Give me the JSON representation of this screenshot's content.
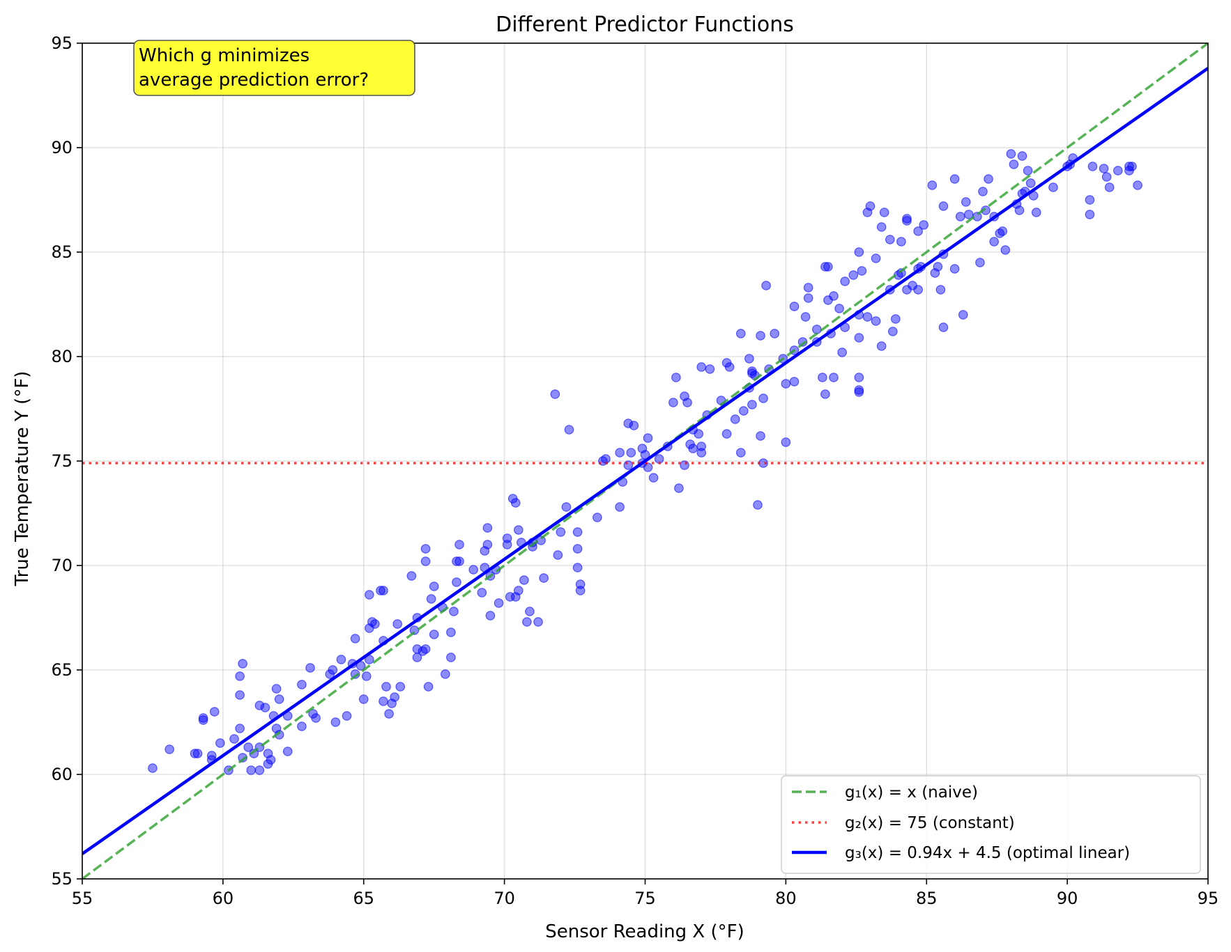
{
  "chart_data": {
    "type": "scatter",
    "title": "Different Predictor Functions",
    "xlabel": "Sensor Reading X (°F)",
    "ylabel": "True Temperature Y (°F)",
    "xlim": [
      55,
      95
    ],
    "ylim": [
      55,
      95
    ],
    "xticks": [
      55,
      60,
      65,
      70,
      75,
      80,
      85,
      90,
      95
    ],
    "yticks": [
      55,
      60,
      65,
      70,
      75,
      80,
      85,
      90,
      95
    ],
    "grid": true,
    "legend_position": "lower-right",
    "annotation": {
      "lines": [
        "Which g minimizes",
        "average prediction error?"
      ],
      "position": "upper-left",
      "background": "#ffff33"
    },
    "series": [
      {
        "kind": "points",
        "color": "#0000ff",
        "points": [
          [
            57.5,
            60.3
          ],
          [
            58.1,
            61.2
          ],
          [
            59.0,
            61.0
          ],
          [
            59.1,
            61.0
          ],
          [
            59.3,
            62.6
          ],
          [
            59.3,
            62.7
          ],
          [
            59.6,
            60.9
          ],
          [
            59.7,
            63.0
          ],
          [
            59.6,
            60.7
          ],
          [
            59.9,
            61.5
          ],
          [
            60.2,
            60.2
          ],
          [
            60.4,
            61.7
          ],
          [
            60.6,
            63.8
          ],
          [
            60.6,
            62.2
          ],
          [
            60.6,
            64.7
          ],
          [
            60.7,
            65.3
          ],
          [
            60.7,
            60.8
          ],
          [
            60.9,
            61.3
          ],
          [
            61.0,
            60.2
          ],
          [
            61.1,
            61.0
          ],
          [
            61.3,
            60.2
          ],
          [
            61.3,
            63.3
          ],
          [
            61.3,
            61.3
          ],
          [
            61.5,
            63.2
          ],
          [
            61.6,
            61.0
          ],
          [
            61.6,
            60.5
          ],
          [
            61.7,
            60.7
          ],
          [
            61.8,
            62.8
          ],
          [
            61.9,
            64.1
          ],
          [
            61.9,
            62.2
          ],
          [
            62.0,
            61.9
          ],
          [
            62.0,
            63.6
          ],
          [
            62.3,
            62.8
          ],
          [
            62.3,
            61.1
          ],
          [
            62.8,
            64.3
          ],
          [
            62.8,
            62.3
          ],
          [
            63.1,
            65.1
          ],
          [
            63.2,
            62.9
          ],
          [
            63.3,
            62.7
          ],
          [
            63.8,
            64.8
          ],
          [
            63.9,
            65.0
          ],
          [
            64.0,
            62.5
          ],
          [
            64.2,
            65.5
          ],
          [
            64.4,
            62.8
          ],
          [
            64.6,
            65.3
          ],
          [
            64.7,
            66.5
          ],
          [
            64.7,
            64.8
          ],
          [
            64.9,
            65.2
          ],
          [
            65.0,
            63.6
          ],
          [
            65.1,
            64.7
          ],
          [
            65.2,
            65.5
          ],
          [
            65.2,
            67.0
          ],
          [
            65.3,
            67.3
          ],
          [
            65.2,
            68.6
          ],
          [
            65.4,
            67.2
          ],
          [
            65.6,
            68.8
          ],
          [
            65.7,
            68.8
          ],
          [
            65.7,
            66.4
          ],
          [
            65.7,
            63.5
          ],
          [
            65.8,
            64.2
          ],
          [
            65.9,
            62.9
          ],
          [
            66.0,
            63.4
          ],
          [
            66.1,
            63.7
          ],
          [
            66.2,
            67.2
          ],
          [
            66.3,
            64.2
          ],
          [
            66.7,
            69.5
          ],
          [
            66.8,
            66.9
          ],
          [
            66.9,
            67.5
          ],
          [
            66.9,
            65.6
          ],
          [
            66.9,
            66.0
          ],
          [
            67.1,
            65.9
          ],
          [
            67.2,
            70.2
          ],
          [
            67.2,
            70.8
          ],
          [
            67.2,
            66.0
          ],
          [
            67.3,
            64.2
          ],
          [
            67.4,
            68.4
          ],
          [
            67.5,
            69.0
          ],
          [
            67.5,
            66.7
          ],
          [
            67.8,
            68.0
          ],
          [
            67.9,
            64.8
          ],
          [
            68.1,
            66.8
          ],
          [
            68.1,
            65.6
          ],
          [
            68.2,
            67.8
          ],
          [
            68.3,
            70.2
          ],
          [
            68.3,
            69.2
          ],
          [
            68.4,
            70.2
          ],
          [
            68.4,
            71.0
          ],
          [
            68.9,
            69.8
          ],
          [
            69.2,
            68.7
          ],
          [
            69.3,
            70.7
          ],
          [
            69.3,
            69.9
          ],
          [
            69.4,
            71.8
          ],
          [
            69.4,
            71.0
          ],
          [
            69.5,
            67.6
          ],
          [
            69.5,
            69.5
          ],
          [
            69.7,
            69.8
          ],
          [
            69.8,
            68.2
          ],
          [
            70.1,
            71.0
          ],
          [
            70.1,
            71.3
          ],
          [
            70.2,
            68.5
          ],
          [
            70.3,
            73.2
          ],
          [
            70.4,
            73.0
          ],
          [
            70.4,
            68.5
          ],
          [
            70.5,
            71.7
          ],
          [
            70.5,
            68.8
          ],
          [
            70.6,
            71.1
          ],
          [
            70.7,
            69.3
          ],
          [
            70.8,
            67.3
          ],
          [
            70.9,
            67.8
          ],
          [
            71.0,
            70.9
          ],
          [
            71.0,
            71.1
          ],
          [
            71.2,
            67.3
          ],
          [
            71.3,
            71.2
          ],
          [
            71.4,
            69.4
          ],
          [
            71.8,
            78.2
          ],
          [
            71.9,
            70.5
          ],
          [
            72.0,
            71.6
          ],
          [
            72.2,
            72.8
          ],
          [
            72.3,
            76.5
          ],
          [
            72.6,
            69.9
          ],
          [
            72.6,
            71.6
          ],
          [
            72.6,
            70.8
          ],
          [
            72.7,
            69.1
          ],
          [
            72.7,
            68.8
          ],
          [
            73.3,
            72.3
          ],
          [
            73.5,
            75.0
          ],
          [
            73.6,
            75.1
          ],
          [
            74.1,
            72.8
          ],
          [
            74.1,
            75.4
          ],
          [
            74.2,
            74.0
          ],
          [
            74.4,
            74.8
          ],
          [
            74.4,
            76.8
          ],
          [
            74.5,
            75.4
          ],
          [
            74.6,
            76.7
          ],
          [
            74.9,
            75.6
          ],
          [
            74.9,
            74.9
          ],
          [
            75.0,
            75.3
          ],
          [
            75.1,
            74.7
          ],
          [
            75.1,
            76.1
          ],
          [
            75.3,
            74.2
          ],
          [
            75.5,
            75.1
          ],
          [
            75.8,
            75.7
          ],
          [
            76.0,
            77.8
          ],
          [
            76.1,
            79.0
          ],
          [
            76.2,
            73.7
          ],
          [
            76.4,
            74.8
          ],
          [
            76.4,
            78.1
          ],
          [
            76.5,
            77.8
          ],
          [
            76.6,
            75.8
          ],
          [
            76.7,
            75.6
          ],
          [
            76.7,
            76.5
          ],
          [
            76.9,
            76.3
          ],
          [
            77.0,
            79.5
          ],
          [
            77.0,
            75.7
          ],
          [
            77.0,
            75.4
          ],
          [
            77.2,
            77.2
          ],
          [
            77.3,
            79.4
          ],
          [
            77.7,
            77.9
          ],
          [
            77.9,
            79.7
          ],
          [
            77.9,
            76.3
          ],
          [
            78.0,
            79.5
          ],
          [
            78.2,
            77.0
          ],
          [
            78.4,
            81.1
          ],
          [
            78.4,
            75.4
          ],
          [
            78.5,
            77.4
          ],
          [
            78.7,
            78.5
          ],
          [
            78.7,
            79.9
          ],
          [
            78.8,
            79.2
          ],
          [
            78.8,
            79.3
          ],
          [
            78.8,
            77.7
          ],
          [
            78.9,
            79.1
          ],
          [
            79.0,
            72.9
          ],
          [
            79.1,
            76.2
          ],
          [
            79.1,
            81.0
          ],
          [
            79.2,
            78.0
          ],
          [
            79.2,
            74.9
          ],
          [
            79.3,
            83.4
          ],
          [
            79.4,
            79.4
          ],
          [
            79.6,
            81.1
          ],
          [
            79.9,
            79.9
          ],
          [
            80.0,
            78.7
          ],
          [
            80.0,
            75.9
          ],
          [
            80.3,
            82.4
          ],
          [
            80.3,
            78.8
          ],
          [
            80.3,
            80.3
          ],
          [
            80.6,
            80.7
          ],
          [
            80.7,
            81.9
          ],
          [
            80.8,
            83.3
          ],
          [
            80.8,
            82.8
          ],
          [
            81.1,
            81.3
          ],
          [
            81.1,
            80.7
          ],
          [
            81.3,
            79.0
          ],
          [
            81.4,
            84.3
          ],
          [
            81.4,
            78.2
          ],
          [
            81.5,
            84.3
          ],
          [
            81.5,
            82.7
          ],
          [
            81.6,
            81.1
          ],
          [
            81.7,
            82.9
          ],
          [
            81.7,
            79.0
          ],
          [
            81.9,
            82.3
          ],
          [
            82.0,
            80.2
          ],
          [
            82.1,
            83.6
          ],
          [
            82.1,
            81.4
          ],
          [
            82.4,
            83.9
          ],
          [
            82.6,
            85.0
          ],
          [
            82.6,
            82.0
          ],
          [
            82.6,
            78.4
          ],
          [
            82.6,
            78.3
          ],
          [
            82.6,
            79.0
          ],
          [
            82.6,
            80.9
          ],
          [
            82.7,
            84.1
          ],
          [
            82.9,
            81.9
          ],
          [
            82.9,
            86.9
          ],
          [
            83.0,
            87.2
          ],
          [
            83.2,
            84.7
          ],
          [
            83.2,
            81.7
          ],
          [
            83.4,
            86.2
          ],
          [
            83.4,
            80.5
          ],
          [
            83.5,
            86.9
          ],
          [
            83.7,
            83.2
          ],
          [
            83.7,
            85.6
          ],
          [
            83.8,
            81.2
          ],
          [
            83.9,
            81.8
          ],
          [
            84.0,
            83.9
          ],
          [
            84.1,
            84.0
          ],
          [
            84.1,
            85.5
          ],
          [
            84.3,
            86.5
          ],
          [
            84.3,
            86.6
          ],
          [
            84.3,
            83.2
          ],
          [
            84.5,
            83.4
          ],
          [
            84.7,
            86.0
          ],
          [
            84.7,
            84.2
          ],
          [
            84.7,
            83.2
          ],
          [
            84.8,
            84.3
          ],
          [
            84.9,
            86.3
          ],
          [
            85.2,
            88.2
          ],
          [
            85.3,
            84.0
          ],
          [
            85.4,
            84.3
          ],
          [
            85.5,
            83.2
          ],
          [
            85.6,
            84.9
          ],
          [
            85.6,
            87.2
          ],
          [
            85.6,
            81.4
          ],
          [
            86.0,
            84.2
          ],
          [
            86.0,
            88.5
          ],
          [
            86.2,
            86.7
          ],
          [
            86.3,
            82.0
          ],
          [
            86.4,
            87.4
          ],
          [
            86.5,
            86.8
          ],
          [
            86.8,
            86.7
          ],
          [
            86.9,
            84.5
          ],
          [
            87.0,
            87.9
          ],
          [
            87.1,
            87.0
          ],
          [
            87.2,
            88.5
          ],
          [
            87.4,
            85.5
          ],
          [
            87.4,
            86.7
          ],
          [
            87.6,
            85.9
          ],
          [
            87.7,
            86.0
          ],
          [
            87.8,
            85.1
          ],
          [
            88.0,
            89.7
          ],
          [
            88.1,
            89.2
          ],
          [
            88.2,
            87.3
          ],
          [
            88.3,
            87.0
          ],
          [
            88.4,
            87.8
          ],
          [
            88.4,
            89.6
          ],
          [
            88.5,
            87.9
          ],
          [
            88.6,
            88.9
          ],
          [
            88.7,
            88.3
          ],
          [
            88.8,
            87.7
          ],
          [
            88.9,
            86.9
          ],
          [
            89.5,
            88.1
          ],
          [
            90.0,
            89.1
          ],
          [
            90.1,
            89.2
          ],
          [
            90.2,
            89.5
          ],
          [
            90.8,
            87.5
          ],
          [
            90.8,
            86.8
          ],
          [
            90.9,
            89.1
          ],
          [
            91.3,
            89.0
          ],
          [
            91.4,
            88.6
          ],
          [
            91.5,
            88.1
          ],
          [
            91.8,
            88.9
          ],
          [
            92.2,
            88.9
          ],
          [
            92.2,
            89.1
          ],
          [
            92.3,
            89.1
          ],
          [
            92.5,
            88.2
          ]
        ]
      },
      {
        "kind": "line",
        "name": "g₁(x) = x (naive)",
        "color": "#2ca02c",
        "dash": "dashed",
        "x": [
          55,
          95
        ],
        "y": [
          55,
          95
        ]
      },
      {
        "kind": "line",
        "name": "g₂(x) = 75 (constant)",
        "color": "#ff0000",
        "dash": "dotted",
        "x": [
          55,
          95
        ],
        "y": [
          74.9,
          74.9
        ]
      },
      {
        "kind": "line",
        "name": "g₃(x) = 0.94x + 4.5 (optimal linear)",
        "color": "#0000ff",
        "dash": "solid",
        "x": [
          55,
          95
        ],
        "y": [
          56.2,
          93.8
        ]
      }
    ]
  }
}
